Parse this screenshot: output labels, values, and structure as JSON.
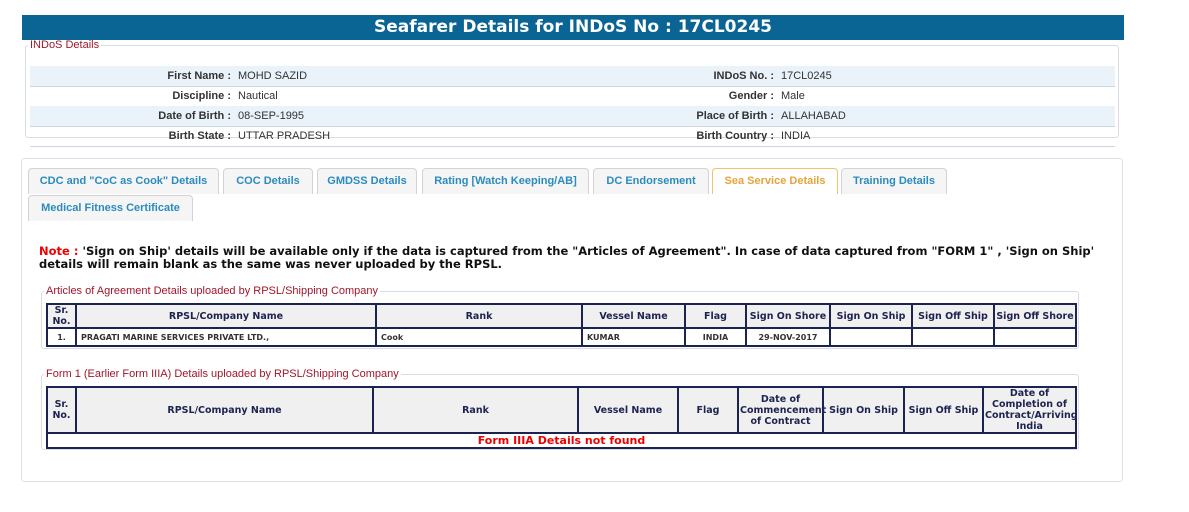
{
  "header": {
    "title": "Seafarer Details for INDoS No : 17CL0245"
  },
  "indos": {
    "legend": "INDoS Details",
    "rows": [
      {
        "l1": "First Name :",
        "v1": "MOHD SAZID",
        "l2": "INDoS No. :",
        "v2": "17CL0245"
      },
      {
        "l1": "Discipline :",
        "v1": "Nautical",
        "l2": "Gender :",
        "v2": "Male"
      },
      {
        "l1": "Date of Birth :",
        "v1": "08-SEP-1995",
        "l2": "Place of Birth :",
        "v2": "ALLAHABAD"
      },
      {
        "l1": "Birth State :",
        "v1": "UTTAR PRADESH",
        "l2": "Birth Country :",
        "v2": "INDIA"
      }
    ]
  },
  "tabs": [
    "CDC and \"CoC as Cook\" Details",
    "COC Details",
    "GMDSS Details",
    "Rating [Watch Keeping/AB]",
    "DC Endorsement",
    "Sea Service Details",
    "Training Details",
    "Medical Fitness Certificate"
  ],
  "active_tab": "Sea Service Details",
  "note": {
    "label": "Note :",
    "text": " 'Sign on Ship' details will be available only if the data is captured from the \"Articles of Agreement\". In case of data captured from \"FORM 1\" , 'Sign on Ship' details will remain blank as the same was never uploaded by the RPSL."
  },
  "aoa": {
    "legend": "Articles of Agreement Details uploaded by RPSL/Shipping Company",
    "headers": [
      "Sr. No.",
      "RPSL/Company Name",
      "Rank",
      "Vessel Name",
      "Flag",
      "Sign On Shore",
      "Sign On Ship",
      "Sign Off Ship",
      "Sign Off Shore"
    ],
    "rows": [
      [
        "1.",
        "PRAGATI MARINE SERVICES PRIVATE LTD.,",
        "Cook",
        "KUMAR",
        "INDIA",
        "29-NOV-2017",
        "",
        "",
        ""
      ]
    ]
  },
  "form1": {
    "legend": "Form 1 (Earlier Form IIIA) Details uploaded by RPSL/Shipping Company",
    "headers": [
      "Sr. No.",
      "RPSL/Company Name",
      "Rank",
      "Vessel Name",
      "Flag",
      "Date of Commencement of Contract",
      "Sign On Ship",
      "Sign Off Ship",
      "Date of Completion of Contract/Arriving India"
    ],
    "empty": "Form IIIA Details not found"
  }
}
